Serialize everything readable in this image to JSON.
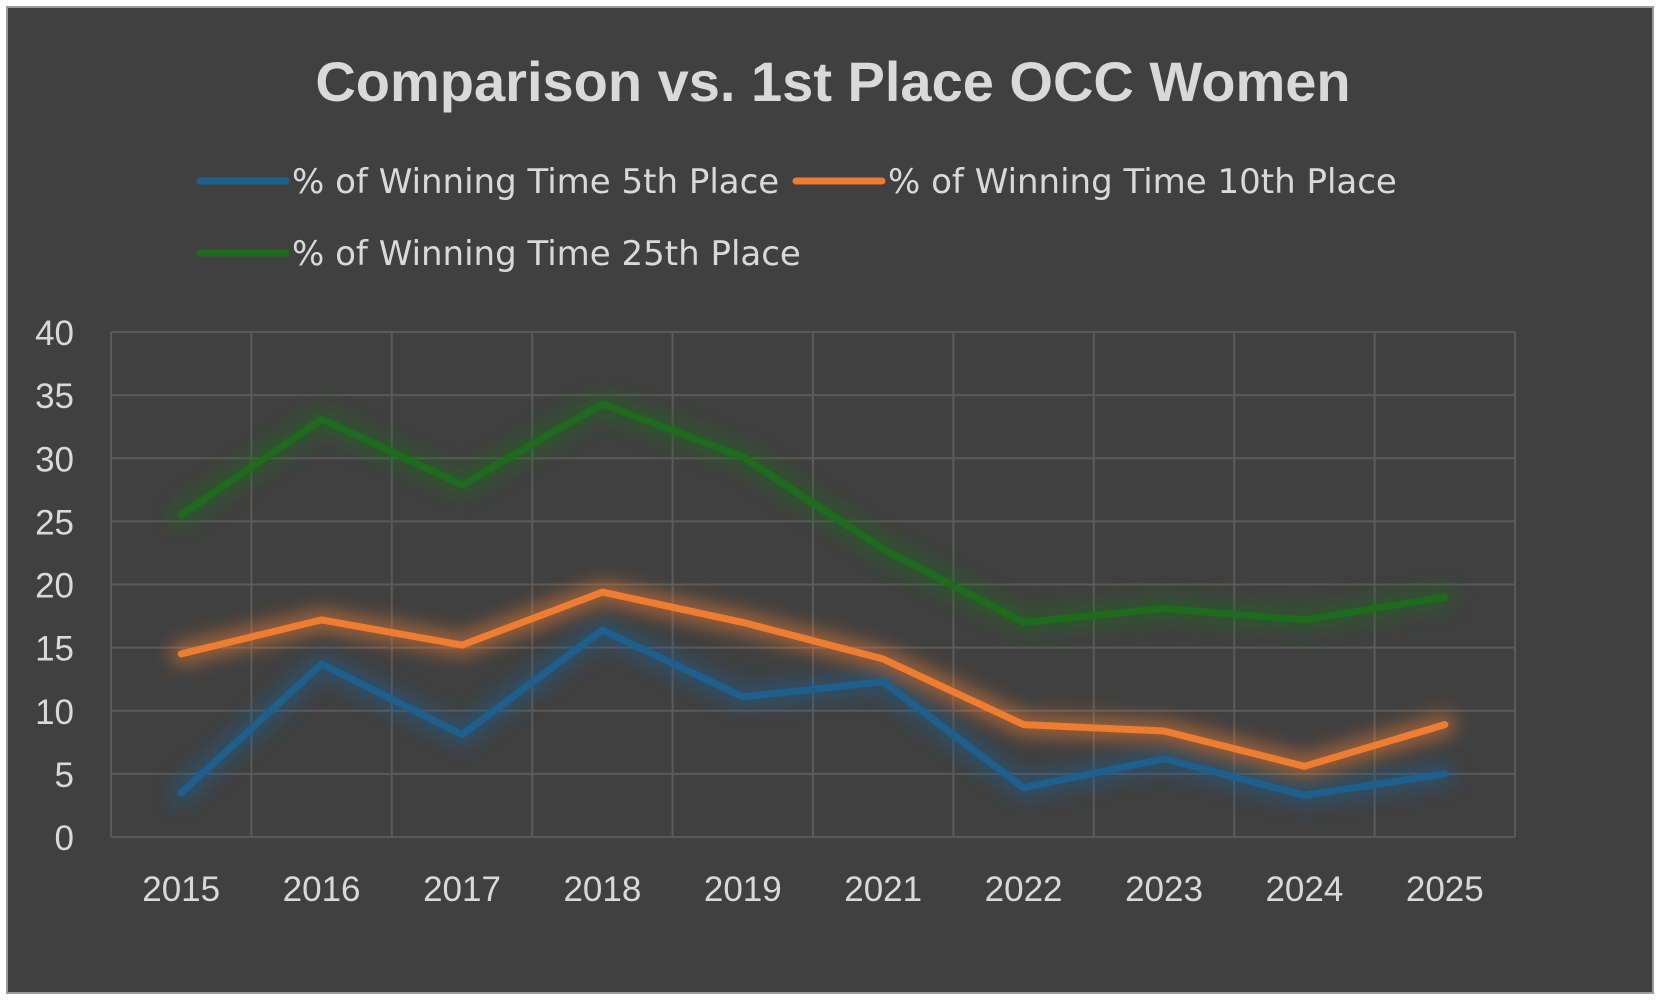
{
  "chart_data": {
    "type": "line",
    "title": "Comparison vs. 1st Place OCC Women",
    "xlabel": "",
    "ylabel": "",
    "categories": [
      "2015",
      "2016",
      "2017",
      "2018",
      "2019",
      "2021",
      "2022",
      "2023",
      "2024",
      "2025"
    ],
    "ylim": [
      0,
      40
    ],
    "yticks": [
      0,
      5,
      10,
      15,
      20,
      25,
      30,
      35,
      40
    ],
    "grid": true,
    "legend_position": "top",
    "series": [
      {
        "name": "% of Winning Time 5th Place",
        "color": "#1f5f8b",
        "values": [
          3.5,
          13.7,
          8.1,
          16.4,
          11.1,
          12.3,
          3.9,
          6.2,
          3.3,
          5.0
        ]
      },
      {
        "name": "% of Winning Time 10th Place",
        "color": "#ed7d31",
        "values": [
          14.5,
          17.2,
          15.2,
          19.4,
          17.0,
          14.1,
          8.9,
          8.4,
          5.6,
          8.9
        ]
      },
      {
        "name": "% of Winning Time 25th Place",
        "color": "#1e6b1e",
        "values": [
          25.5,
          33.1,
          27.9,
          34.3,
          30.1,
          22.8,
          17.0,
          18.1,
          17.2,
          19.0
        ]
      }
    ]
  }
}
